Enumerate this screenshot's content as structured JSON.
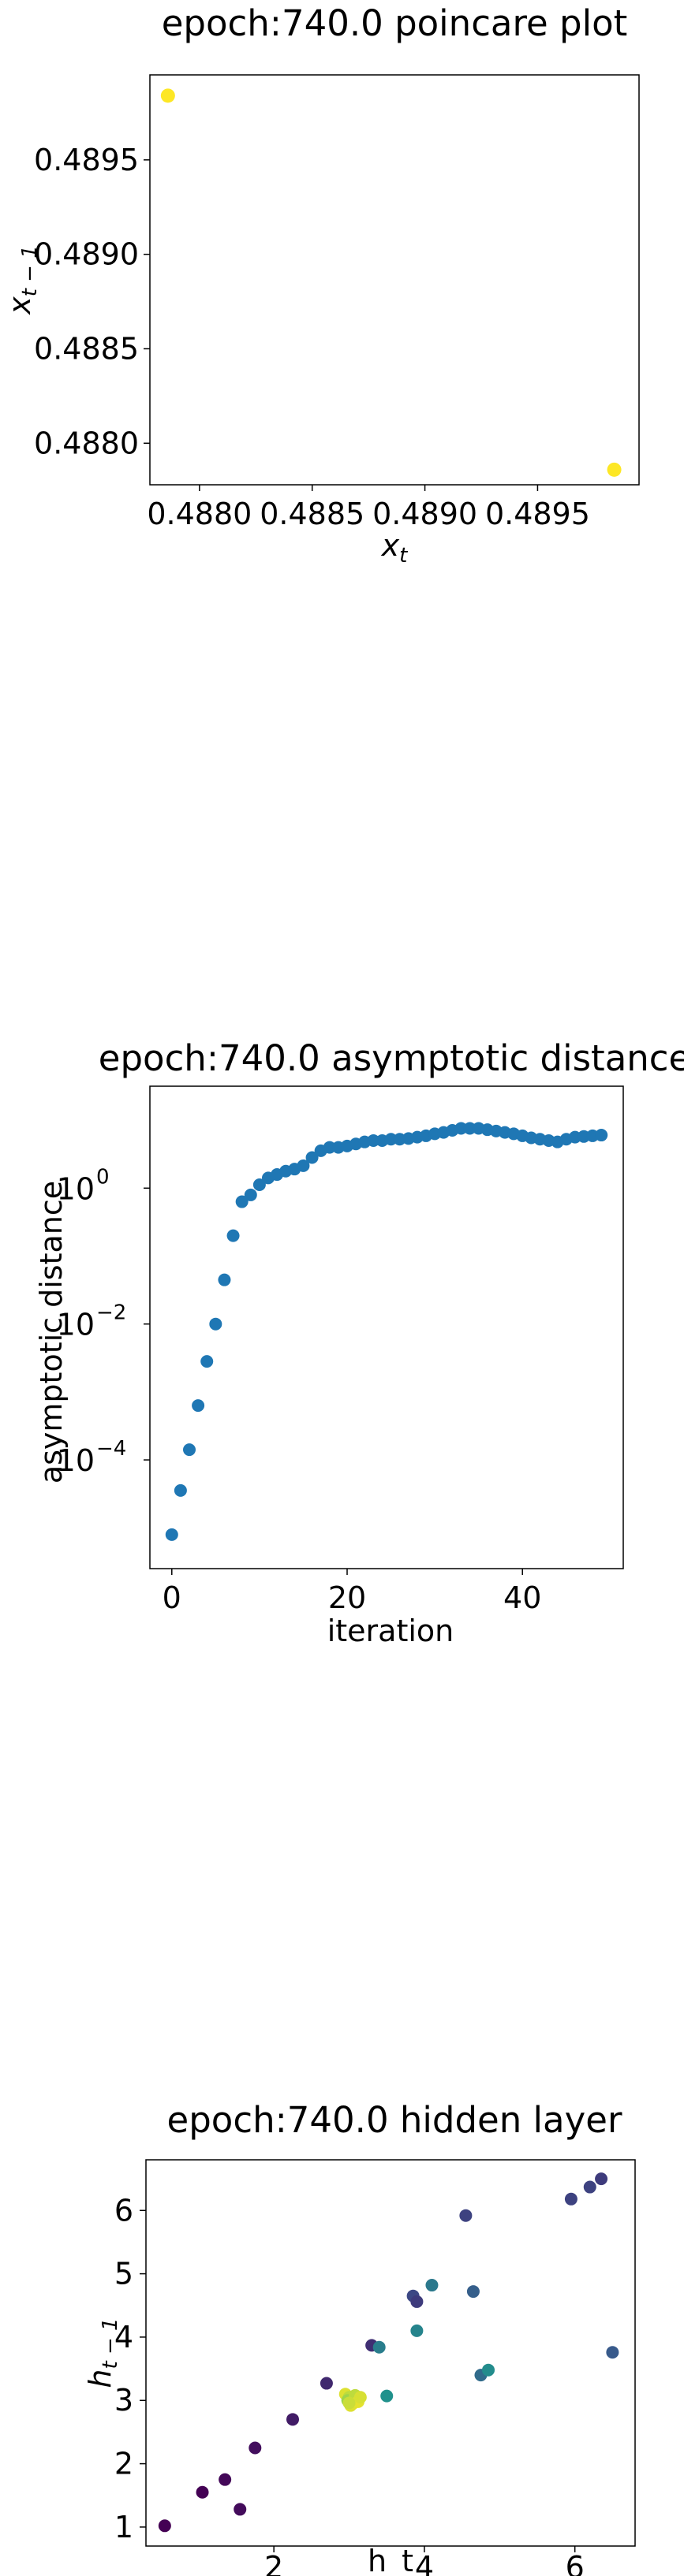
{
  "chart_data": [
    {
      "type": "scatter",
      "title": "epoch:740.0 poincare plot",
      "xlabel": "x_t",
      "ylabel": "x_{t-1}",
      "xlim": [
        0.48778,
        0.48995
      ],
      "ylim": [
        0.48778,
        0.48995
      ],
      "xticks": [
        0.488,
        0.4885,
        0.489,
        0.4895
      ],
      "xtick_labels": [
        "0.4880",
        "0.4885",
        "0.4890",
        "0.4895"
      ],
      "yticks": [
        0.488,
        0.4885,
        0.489,
        0.4895
      ],
      "ytick_labels": [
        "0.4880",
        "0.4885",
        "0.4890",
        "0.4895"
      ],
      "grid": false,
      "series": [
        {
          "color": "#fde725",
          "points": [
            [
              0.48786,
              0.48984
            ],
            [
              0.48984,
              0.48786
            ]
          ]
        }
      ]
    },
    {
      "type": "scatter",
      "title": "epoch:740.0 asymptotic distance",
      "xlabel": "iteration",
      "ylabel": "asymptotic distance",
      "yscale": "log",
      "xlim": [
        -2.5,
        51.5
      ],
      "ylim_log10": [
        -5.6,
        1.5
      ],
      "xticks": [
        0,
        20,
        40
      ],
      "xtick_labels": [
        "0",
        "20",
        "40"
      ],
      "yticks_log10": [
        -4,
        -2,
        0
      ],
      "ytick_labels": [
        "10",
        "10",
        "10"
      ],
      "ytick_exponents": [
        "−4",
        "−2",
        "0"
      ],
      "grid": false,
      "series": [
        {
          "color": "#1f77b4",
          "x": [
            0,
            1,
            2,
            3,
            4,
            5,
            6,
            7,
            8,
            9,
            10,
            11,
            12,
            13,
            14,
            15,
            16,
            17,
            18,
            19,
            20,
            21,
            22,
            23,
            24,
            25,
            26,
            27,
            28,
            29,
            30,
            31,
            32,
            33,
            34,
            35,
            36,
            37,
            38,
            39,
            40,
            41,
            42,
            43,
            44,
            45,
            46,
            47,
            48,
            49
          ],
          "log10_y": [
            -5.1,
            -4.45,
            -3.85,
            -3.2,
            -2.55,
            -2.0,
            -1.35,
            -0.7,
            -0.2,
            -0.1,
            0.05,
            0.15,
            0.2,
            0.25,
            0.28,
            0.33,
            0.45,
            0.55,
            0.6,
            0.6,
            0.62,
            0.65,
            0.68,
            0.7,
            0.7,
            0.72,
            0.72,
            0.73,
            0.75,
            0.77,
            0.8,
            0.82,
            0.85,
            0.88,
            0.88,
            0.88,
            0.86,
            0.84,
            0.82,
            0.8,
            0.77,
            0.74,
            0.72,
            0.7,
            0.68,
            0.72,
            0.75,
            0.76,
            0.77,
            0.78
          ]
        }
      ]
    },
    {
      "type": "scatter",
      "title": "epoch:740.0 hidden layer",
      "xlabel": "h_t",
      "ylabel": "h_{t-1}",
      "xlim": [
        0.3,
        6.8
      ],
      "ylim": [
        0.7,
        6.8
      ],
      "xticks": [
        2,
        4,
        6
      ],
      "xtick_labels": [
        "2",
        "4",
        "6"
      ],
      "yticks": [
        1,
        2,
        3,
        4,
        5,
        6
      ],
      "ytick_labels": [
        "1",
        "2",
        "3",
        "4",
        "5",
        "6"
      ],
      "grid": false,
      "series": [
        {
          "colormap": "viridis",
          "points": [
            [
              0.55,
              1.02,
              0.0
            ],
            [
              1.05,
              1.55,
              0.0
            ],
            [
              1.35,
              1.75,
              0.02
            ],
            [
              1.55,
              1.28,
              0.03
            ],
            [
              1.75,
              2.25,
              0.04
            ],
            [
              2.25,
              2.7,
              0.08
            ],
            [
              2.7,
              3.27,
              0.12
            ],
            [
              3.3,
              3.87,
              0.14
            ],
            [
              3.4,
              3.84,
              0.42
            ],
            [
              3.5,
              3.07,
              0.5
            ],
            [
              3.85,
              4.65,
              0.22
            ],
            [
              3.9,
              4.56,
              0.18
            ],
            [
              3.9,
              4.1,
              0.45
            ],
            [
              4.1,
              4.82,
              0.4
            ],
            [
              4.55,
              5.92,
              0.2
            ],
            [
              4.65,
              4.72,
              0.3
            ],
            [
              4.75,
              3.4,
              0.35
            ],
            [
              4.85,
              3.48,
              0.48
            ],
            [
              5.95,
              6.18,
              0.2
            ],
            [
              6.2,
              6.37,
              0.2
            ],
            [
              6.35,
              6.5,
              0.18
            ],
            [
              6.5,
              3.76,
              0.28
            ],
            [
              2.95,
              3.1,
              0.95
            ],
            [
              3.0,
              3.05,
              0.9
            ],
            [
              3.05,
              2.95,
              0.98
            ],
            [
              3.1,
              3.02,
              1.0
            ],
            [
              2.98,
              3.0,
              0.85
            ],
            [
              3.02,
              2.92,
              0.95
            ],
            [
              3.08,
              3.08,
              0.9
            ],
            [
              3.12,
              2.98,
              0.96
            ],
            [
              3.0,
              2.96,
              0.92
            ],
            [
              3.15,
              3.05,
              0.94
            ]
          ]
        }
      ]
    }
  ]
}
